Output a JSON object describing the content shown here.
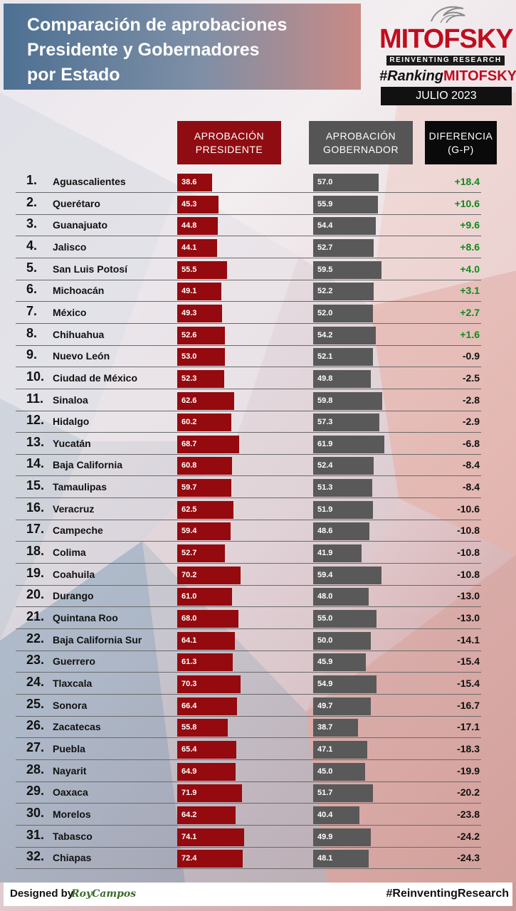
{
  "title": {
    "line1": "Comparación de aprobaciones",
    "line2": "Presidente y Gobernadores",
    "line3": "por Estado"
  },
  "logo": {
    "brand": "MITOFSKY",
    "tagline": "REINVENTING RESEARCH",
    "hashtag_prefix": "#Ranking",
    "hashtag_brand": "MITOFSKY",
    "date": "JULIO 2023"
  },
  "headers": {
    "president": [
      "APROBACIÓN",
      "PRESIDENTE"
    ],
    "governor": [
      "APROBACIÓN",
      "GOBERNADOR"
    ],
    "difference": [
      "DIFERENCIA",
      "(G-P)"
    ]
  },
  "colors": {
    "president_bar": "#940a0f",
    "governor_bar": "#595959",
    "positive_diff": "#0f8a1c",
    "negative_diff": "#111111",
    "brand_red": "#c00d1e"
  },
  "chart_data": {
    "type": "bar",
    "categories": [
      "Aguascalientes",
      "Querétaro",
      "Guanajuato",
      "Jalisco",
      "San Luis Potosí",
      "Michoacán",
      "México",
      "Chihuahua",
      "Nuevo León",
      "Ciudad de México",
      "Sinaloa",
      "Hidalgo",
      "Yucatán",
      "Baja California",
      "Tamaulipas",
      "Veracruz",
      "Campeche",
      "Colima",
      "Coahuila",
      "Durango",
      "Quintana Roo",
      "Baja California Sur",
      "Guerrero",
      "Tlaxcala",
      "Sonora",
      "Zacatecas",
      "Puebla",
      "Nayarit",
      "Oaxaca",
      "Morelos",
      "Tabasco",
      "Chiapas"
    ],
    "ranks": [
      "1.",
      "2.",
      "3.",
      "4.",
      "5.",
      "6.",
      "7.",
      "8.",
      "9.",
      "10.",
      "11.",
      "12.",
      "13.",
      "14.",
      "15.",
      "16.",
      "17.",
      "18.",
      "19.",
      "20.",
      "21.",
      "22.",
      "23.",
      "24.",
      "25.",
      "26.",
      "27.",
      "28.",
      "29.",
      "30.",
      "31.",
      "32."
    ],
    "series": [
      {
        "name": "APROBACIÓN PRESIDENTE",
        "values": [
          38.6,
          45.3,
          44.8,
          44.1,
          55.5,
          49.1,
          49.3,
          52.6,
          53.0,
          52.3,
          62.6,
          60.2,
          68.7,
          60.8,
          59.7,
          62.5,
          59.4,
          52.7,
          70.2,
          61.0,
          68.0,
          64.1,
          61.3,
          70.3,
          66.4,
          55.8,
          65.4,
          64.9,
          71.9,
          64.2,
          74.1,
          72.4
        ]
      },
      {
        "name": "APROBACIÓN GOBERNADOR",
        "values": [
          57.0,
          55.9,
          54.4,
          52.7,
          59.5,
          52.2,
          52.0,
          54.2,
          52.1,
          49.8,
          59.8,
          57.3,
          61.9,
          52.4,
          51.3,
          51.9,
          48.6,
          41.9,
          59.4,
          48.0,
          55.0,
          50.0,
          45.9,
          54.9,
          49.7,
          38.7,
          47.1,
          45.0,
          51.7,
          40.4,
          49.9,
          48.1
        ]
      },
      {
        "name": "DIFERENCIA (G-P)",
        "values": [
          "+18.4",
          "+10.6",
          "+9.6",
          "+8.6",
          "+4.0",
          "+3.1",
          "+2.7",
          "+1.6",
          "-0.9",
          "-2.5",
          "-2.8",
          "-2.9",
          "-6.8",
          "-8.4",
          "-8.4",
          "-10.6",
          "-10.8",
          "-10.8",
          "-10.8",
          "-13.0",
          "-13.0",
          "-14.1",
          "-15.4",
          "-15.4",
          "-16.7",
          "-17.1",
          "-18.3",
          "-19.9",
          "-20.2",
          "-23.8",
          "-24.2",
          "-24.3"
        ]
      }
    ]
  },
  "footer": {
    "designed_by": "Designed by",
    "author": "RoyCampos",
    "hashtag": "#ReinventingResearch"
  }
}
